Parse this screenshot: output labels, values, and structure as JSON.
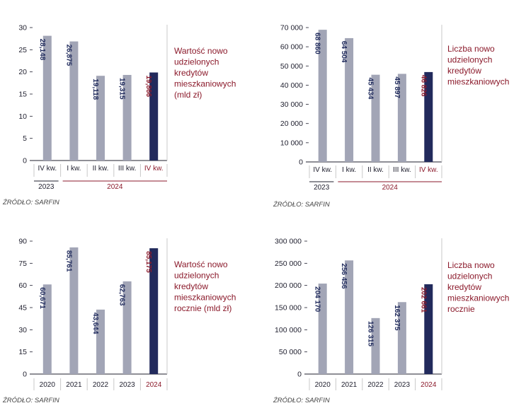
{
  "colors": {
    "bar": "#a2a5b6",
    "highlight": "#222a5c",
    "accent": "#8b1a2b",
    "axis": "#1f1f2e",
    "grid": "#c9c9c9"
  },
  "chart_data": [
    {
      "type": "bar",
      "title": "Wartość nowo udzielonych kredytów mieszkaniowych (mld zł)",
      "title_lines": [
        "Wartość nowo",
        "udzielonych",
        "kredytów",
        "mieszkaniowych",
        "(mld zł)"
      ],
      "categories": [
        "IV kw.",
        "I kw.",
        "II kw.",
        "III kw.",
        "IV kw."
      ],
      "values": [
        28.148,
        26.875,
        19.118,
        19.315,
        19.866
      ],
      "value_labels": [
        "28,148",
        "26,875",
        "19,118",
        "19,315",
        "19,866"
      ],
      "yticks": [
        0,
        5,
        10,
        15,
        20,
        25,
        30
      ],
      "ytick_labels": [
        "0",
        "5",
        "10",
        "15",
        "20",
        "25",
        "30"
      ],
      "ylim": [
        0,
        30
      ],
      "highlight_index": 4,
      "groups": [
        {
          "label": "2023",
          "span": [
            0,
            0
          ]
        },
        {
          "label": "2024",
          "span": [
            1,
            4
          ]
        }
      ],
      "source": "ŹRÓDŁO: SARFIN"
    },
    {
      "type": "bar",
      "title": "Liczba nowo udzielonych kredytów mieszkaniowych",
      "title_lines": [
        "Liczba nowo",
        "udzielonych",
        "kredytów",
        "mieszkaniowych"
      ],
      "categories": [
        "IV kw.",
        "I kw.",
        "II kw.",
        "III kw.",
        "IV kw."
      ],
      "values": [
        68860,
        64504,
        45434,
        45897,
        46826
      ],
      "value_labels": [
        "68 860",
        "64 504",
        "45 434",
        "45 897",
        "46 826"
      ],
      "yticks": [
        0,
        10000,
        20000,
        30000,
        40000,
        50000,
        60000,
        70000
      ],
      "ytick_labels": [
        "0",
        "10 000",
        "20 000",
        "30 000",
        "40 000",
        "50 000",
        "60 000",
        "70 000"
      ],
      "ylim": [
        0,
        70000
      ],
      "highlight_index": 4,
      "groups": [
        {
          "label": "2023",
          "span": [
            0,
            0
          ]
        },
        {
          "label": "2024",
          "span": [
            1,
            4
          ]
        }
      ],
      "source": "ŹRÓDŁO: SARFIN"
    },
    {
      "type": "bar",
      "title": "Wartość nowo udzielonych kredytów mieszkaniowych rocznie (mld zł)",
      "title_lines": [
        "Wartość nowo",
        "udzielonych",
        "kredytów",
        "mieszkaniowych",
        "rocznie (mld zł)"
      ],
      "categories": [
        "2020",
        "2021",
        "2022",
        "2023",
        "2024"
      ],
      "values": [
        60.671,
        85.761,
        43.644,
        62.763,
        85.175
      ],
      "value_labels": [
        "60,671",
        "85,761",
        "43,644",
        "62,763",
        "85,175"
      ],
      "yticks": [
        0,
        15,
        30,
        45,
        60,
        75,
        90
      ],
      "ytick_labels": [
        "0",
        "15",
        "30",
        "45",
        "60",
        "75",
        "90"
      ],
      "ylim": [
        0,
        90
      ],
      "highlight_index": 4,
      "groups": [],
      "source": "ŹRÓDŁO: SARFIN"
    },
    {
      "type": "bar",
      "title": "Liczba nowo udzielonych kredytów mieszkaniowych rocznie",
      "title_lines": [
        "Liczba nowo",
        "udzielonych",
        "kredytów",
        "mieszkaniowych",
        "rocznie"
      ],
      "categories": [
        "2020",
        "2021",
        "2022",
        "2023",
        "2024"
      ],
      "values": [
        204170,
        256456,
        126315,
        162375,
        202661
      ],
      "value_labels": [
        "204 170",
        "256 456",
        "126 315",
        "162 375",
        "202 661"
      ],
      "yticks": [
        0,
        50000,
        100000,
        150000,
        200000,
        250000,
        300000
      ],
      "ytick_labels": [
        "0",
        "50 000",
        "100 000",
        "150 000",
        "200 000",
        "250 000",
        "300 000"
      ],
      "ylim": [
        0,
        300000
      ],
      "highlight_index": 4,
      "groups": [],
      "source": "ŹRÓDŁO: SARFIN"
    }
  ]
}
